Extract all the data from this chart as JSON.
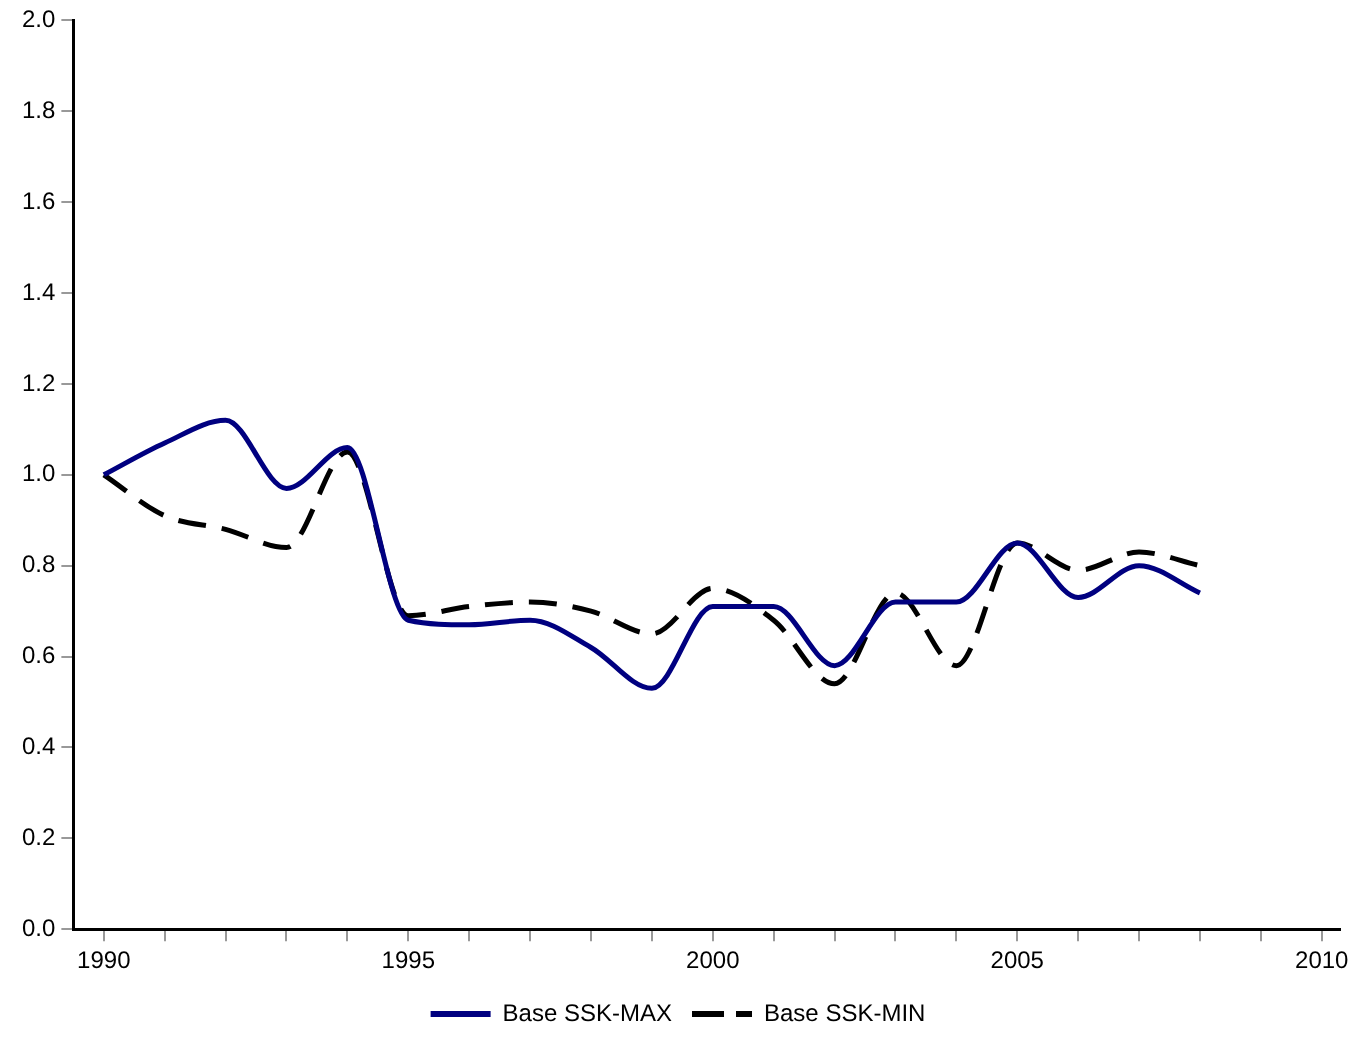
{
  "chart_data": {
    "type": "line",
    "x": [
      1990,
      1991,
      1992,
      1993,
      1994,
      1995,
      1996,
      1997,
      1998,
      1999,
      2000,
      2001,
      2002,
      2003,
      2004,
      2005,
      2006,
      2007,
      2008
    ],
    "series": [
      {
        "name": "Base SSK-MAX",
        "color": "#000080",
        "line_style": "solid",
        "values": [
          1.0,
          1.07,
          1.12,
          0.97,
          1.06,
          0.68,
          0.67,
          0.68,
          0.62,
          0.53,
          0.71,
          0.71,
          0.58,
          0.72,
          0.72,
          0.85,
          0.73,
          0.8,
          0.74
        ]
      },
      {
        "name": "Base SSK-MIN",
        "color": "#000000",
        "line_style": "dashed",
        "values": [
          1.0,
          0.91,
          0.88,
          0.84,
          1.05,
          0.69,
          0.71,
          0.72,
          0.7,
          0.65,
          0.75,
          0.68,
          0.54,
          0.74,
          0.58,
          0.85,
          0.79,
          0.83,
          0.8
        ]
      }
    ],
    "xlim": [
      1989.5,
      2010.3
    ],
    "xticks": [
      1990,
      {
        "value": 1991,
        "label": null
      },
      {
        "value": 1992,
        "label": null
      },
      {
        "value": 1993,
        "label": null
      },
      {
        "value": 1994,
        "label": null
      },
      1995,
      {
        "value": 1996,
        "label": null
      },
      {
        "value": 1997,
        "label": null
      },
      {
        "value": 1998,
        "label": null
      },
      {
        "value": 1999,
        "label": null
      },
      2000,
      {
        "value": 2001,
        "label": null
      },
      {
        "value": 2002,
        "label": null
      },
      {
        "value": 2003,
        "label": null
      },
      {
        "value": 2004,
        "label": null
      },
      2005,
      {
        "value": 2006,
        "label": null
      },
      {
        "value": 2007,
        "label": null
      },
      {
        "value": 2008,
        "label": null
      },
      {
        "value": 2009,
        "label": null
      },
      2010
    ],
    "ylim": [
      0,
      2
    ],
    "yticks": [
      {
        "value": 0,
        "label": "0.0"
      },
      {
        "value": 0.2,
        "label": "0.2"
      },
      {
        "value": 0.4,
        "label": "0.4"
      },
      {
        "value": 0.6,
        "label": "0.6"
      },
      {
        "value": 0.8,
        "label": "0.8"
      },
      {
        "value": 1,
        "label": "1.0"
      },
      {
        "value": 1.2,
        "label": "1.2"
      },
      {
        "value": 1.4,
        "label": "1.4"
      },
      {
        "value": 1.6,
        "label": "1.6"
      },
      {
        "value": 1.8,
        "label": "1.8"
      },
      {
        "value": 2,
        "label": "2.0"
      }
    ],
    "grid": false,
    "legend": "bottom",
    "marker": "none"
  }
}
